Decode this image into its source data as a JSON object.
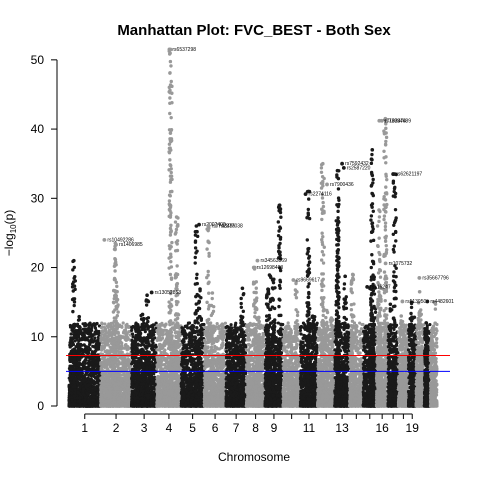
{
  "chart_data": {
    "type": "scatter",
    "title": "Manhattan Plot: FVC_BEST - Both Sex",
    "xlabel": "Chromosome",
    "ylabel_prefix": "−log",
    "ylabel_sub": "10",
    "ylabel_suffix": "(p)",
    "ylim": [
      0,
      52
    ],
    "yticks": [
      0,
      10,
      20,
      30,
      40,
      50
    ],
    "xtick_labels": [
      "1",
      "2",
      "3",
      "4",
      "5",
      "6",
      "7",
      "8",
      "9",
      "11",
      "13",
      "16",
      "19"
    ],
    "xtick_chromosomes": [
      1,
      2,
      3,
      4,
      5,
      6,
      7,
      8,
      9,
      11,
      13,
      16,
      19
    ],
    "colors": {
      "odd": "#1a1a1a",
      "even": "#999999",
      "genome_wide_line": "#ff0000",
      "suggestive_line": "#0000ff"
    },
    "thresholds": {
      "genome_wide": 7.3,
      "suggestive": 5.0
    },
    "chromosome_peaks": [
      {
        "chr": 1,
        "max": 21
      },
      {
        "chr": 2,
        "max": 23.5
      },
      {
        "chr": 3,
        "max": 16
      },
      {
        "chr": 4,
        "max": 51.5
      },
      {
        "chr": 5,
        "max": 26
      },
      {
        "chr": 6,
        "max": 26
      },
      {
        "chr": 7,
        "max": 17
      },
      {
        "chr": 8,
        "max": 20
      },
      {
        "chr": 9,
        "max": 29
      },
      {
        "chr": 10,
        "max": 18
      },
      {
        "chr": 11,
        "max": 31
      },
      {
        "chr": 12,
        "max": 35
      },
      {
        "chr": 13,
        "max": 34
      },
      {
        "chr": 14,
        "max": 19
      },
      {
        "chr": 15,
        "max": 37
      },
      {
        "chr": 16,
        "max": 41.5
      },
      {
        "chr": 17,
        "max": 33.5
      },
      {
        "chr": 18,
        "max": 13
      },
      {
        "chr": 19,
        "max": 15
      },
      {
        "chr": 20,
        "max": 16.5
      },
      {
        "chr": 21,
        "max": 12
      },
      {
        "chr": 22,
        "max": 15
      }
    ],
    "annotations": [
      {
        "label": "rs6537298",
        "chr": 4,
        "frac": 0.52,
        "y": 51.5
      },
      {
        "label": "rs7162474",
        "chr": 16,
        "frac": 0.25,
        "y": 41.2
      },
      {
        "label": "rs73984689",
        "chr": 16,
        "frac": 0.45,
        "y": 41.2
      },
      {
        "label": "rs7592432",
        "chr": 13,
        "frac": 0.5,
        "y": 35.0
      },
      {
        "label": "rs2587220",
        "chr": 13,
        "frac": 0.62,
        "y": 34.4
      },
      {
        "label": "rs62621197",
        "chr": 17,
        "frac": 0.5,
        "y": 33.5
      },
      {
        "label": "rs7900436",
        "chr": 12,
        "frac": 0.55,
        "y": 32.0
      },
      {
        "label": "rs2274116",
        "chr": 11,
        "frac": 0.3,
        "y": 30.6
      },
      {
        "label": "rs2002400",
        "chr": 5,
        "frac": 0.78,
        "y": 26.2
      },
      {
        "label": "rs7743486",
        "chr": 6,
        "frac": 0.2,
        "y": 26.0
      },
      {
        "label": "rs2277038",
        "chr": 6,
        "frac": 0.55,
        "y": 26.0
      },
      {
        "label": "rs10492286",
        "chr": 2,
        "frac": 0.12,
        "y": 24.0
      },
      {
        "label": "rs1406985",
        "chr": 2,
        "frac": 0.5,
        "y": 23.3
      },
      {
        "label": "rs34563869",
        "chr": 8,
        "frac": 0.6,
        "y": 21.0
      },
      {
        "label": "rs12698403",
        "chr": 8,
        "frac": 0.4,
        "y": 20.0
      },
      {
        "label": "rs1075732",
        "chr": 16,
        "frac": 0.8,
        "y": 20.6
      },
      {
        "label": "rs9669617",
        "chr": 10,
        "frac": 0.6,
        "y": 18.2
      },
      {
        "label": "rs35667796",
        "chr": 20,
        "frac": 0.4,
        "y": 18.5
      },
      {
        "label": "rs116247",
        "chr": 15,
        "frac": 0.3,
        "y": 17.2
      },
      {
        "label": "rs13052853",
        "chr": 3,
        "frac": 0.8,
        "y": 16.4
      },
      {
        "label": "rs513950",
        "chr": 18,
        "frac": 0.4,
        "y": 15.1
      },
      {
        "label": "rs4482601",
        "chr": 21,
        "frac": 0.5,
        "y": 15.1
      }
    ]
  }
}
